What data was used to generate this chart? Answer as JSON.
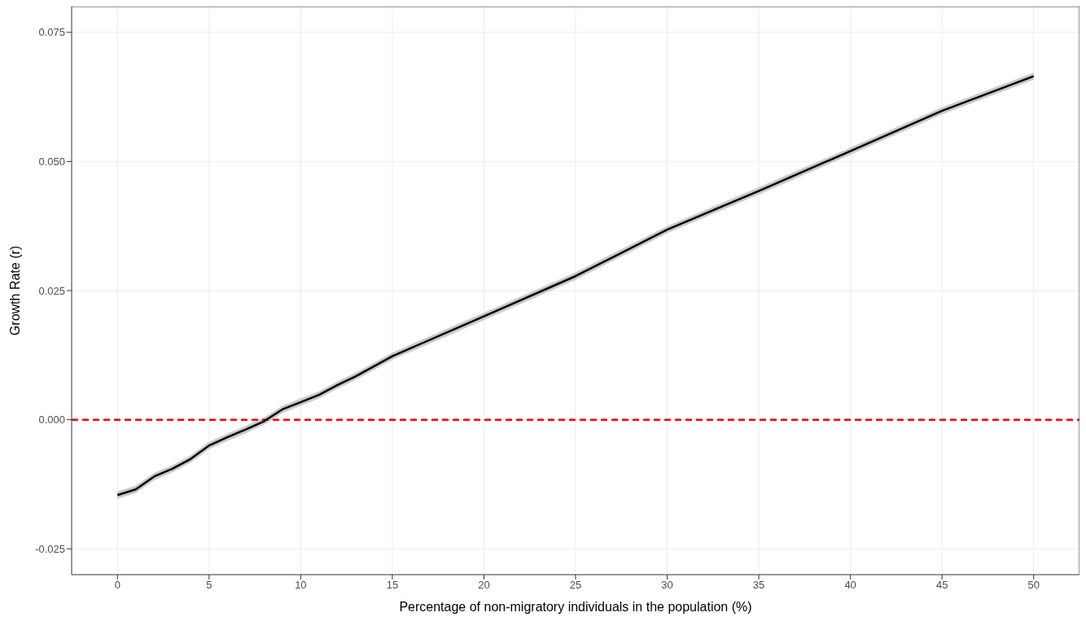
{
  "chart_data": {
    "type": "line",
    "xlabel": "Percentage of non-migratory individuals in the population (%)",
    "ylabel": "Growth Rate (r)",
    "x": [
      0,
      1,
      2,
      3,
      4,
      5,
      6,
      7,
      8,
      9,
      10,
      11,
      12,
      13,
      15,
      20,
      25,
      30,
      35,
      40,
      45,
      50
    ],
    "series": [
      {
        "color": "#000000",
        "values": [
          -0.0146,
          -0.0135,
          -0.011,
          -0.0095,
          -0.0076,
          -0.005,
          -0.0034,
          -0.0019,
          -0.0003,
          0.002,
          0.0034,
          0.0048,
          0.0067,
          0.0084,
          0.0123,
          0.02,
          0.0278,
          0.0368,
          0.0443,
          0.052,
          0.0598,
          0.0665
        ],
        "lower": [
          -0.0153,
          -0.0142,
          -0.0117,
          -0.0102,
          -0.0083,
          -0.0057,
          -0.0041,
          -0.0026,
          -0.001,
          0.0013,
          0.0027,
          0.0041,
          0.006,
          0.0077,
          0.0116,
          0.0193,
          0.0271,
          0.0361,
          0.0436,
          0.0513,
          0.0591,
          0.0658
        ],
        "upper": [
          -0.0139,
          -0.0128,
          -0.0103,
          -0.0088,
          -0.0069,
          -0.0043,
          -0.0027,
          -0.0012,
          0.0004,
          0.0027,
          0.0041,
          0.0055,
          0.0074,
          0.0091,
          0.013,
          0.0207,
          0.0285,
          0.0375,
          0.045,
          0.0527,
          0.0605,
          0.0672
        ]
      }
    ],
    "xlim": [
      -2.5,
      52.5
    ],
    "xticks": [
      0,
      5,
      10,
      15,
      20,
      25,
      30,
      35,
      40,
      45,
      50
    ],
    "ylim": [
      -0.03,
      0.08
    ],
    "yticks": [
      {
        "value": -0.025,
        "label": "-0.025"
      },
      {
        "value": 0,
        "label": "0.000"
      },
      {
        "value": 0.025,
        "label": "0.025"
      },
      {
        "value": 0.05,
        "label": "0.050"
      },
      {
        "value": 0.075,
        "label": "0.075"
      }
    ],
    "ref_lines": [
      {
        "axis": "y",
        "value": 0,
        "color": "#ff0000",
        "line_style": "dashed"
      }
    ],
    "grid": true,
    "marker": "none",
    "line_style": "solid"
  }
}
